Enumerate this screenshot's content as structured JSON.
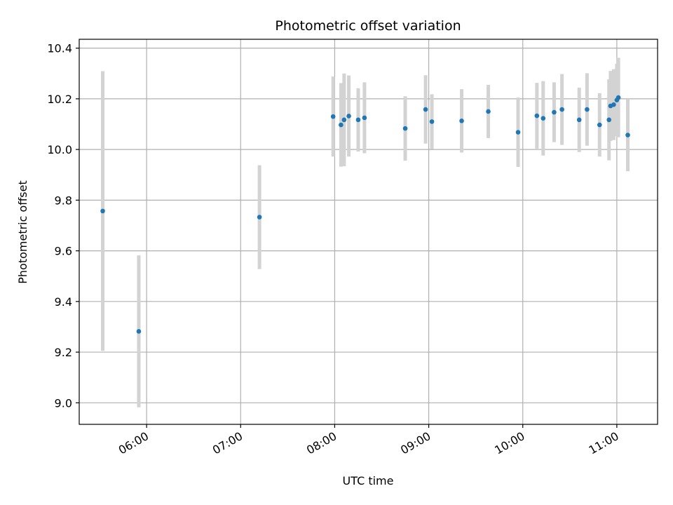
{
  "chart_data": {
    "type": "scatter",
    "title": "Photometric offset variation",
    "xlabel": "UTC time",
    "ylabel": "Photometric offset",
    "xlim": [
      "05:17",
      "11:26"
    ],
    "ylim": [
      8.915,
      10.435
    ],
    "x_ticks": [
      "06:00",
      "07:00",
      "08:00",
      "09:00",
      "10:00",
      "11:00"
    ],
    "y_ticks": [
      "9.0",
      "9.2",
      "9.4",
      "9.6",
      "9.8",
      "10.0",
      "10.2",
      "10.4"
    ],
    "grid": true,
    "colors": {
      "points": "#1f77b4",
      "errorbars": "#d3d3d3",
      "grid": "#b0b0b0"
    },
    "series": [
      {
        "points": [
          {
            "x": "05:32",
            "y": 9.757,
            "err": 0.552
          },
          {
            "x": "05:55",
            "y": 9.282,
            "err": 0.3
          },
          {
            "x": "07:12",
            "y": 9.733,
            "err": 0.205
          },
          {
            "x": "07:59",
            "y": 10.13,
            "err": 0.158
          },
          {
            "x": "08:04",
            "y": 10.097,
            "err": 0.165
          },
          {
            "x": "08:06",
            "y": 10.117,
            "err": 0.183
          },
          {
            "x": "08:09",
            "y": 10.132,
            "err": 0.16
          },
          {
            "x": "08:15",
            "y": 10.117,
            "err": 0.125
          },
          {
            "x": "08:19",
            "y": 10.125,
            "err": 0.14
          },
          {
            "x": "08:45",
            "y": 10.083,
            "err": 0.127
          },
          {
            "x": "08:58",
            "y": 10.158,
            "err": 0.135
          },
          {
            "x": "09:02",
            "y": 10.11,
            "err": 0.108
          },
          {
            "x": "09:21",
            "y": 10.113,
            "err": 0.125
          },
          {
            "x": "09:38",
            "y": 10.15,
            "err": 0.105
          },
          {
            "x": "09:57",
            "y": 10.068,
            "err": 0.137
          },
          {
            "x": "10:09",
            "y": 10.133,
            "err": 0.13
          },
          {
            "x": "10:13",
            "y": 10.123,
            "err": 0.147
          },
          {
            "x": "10:20",
            "y": 10.147,
            "err": 0.118
          },
          {
            "x": "10:25",
            "y": 10.158,
            "err": 0.14
          },
          {
            "x": "10:36",
            "y": 10.117,
            "err": 0.127
          },
          {
            "x": "10:41",
            "y": 10.158,
            "err": 0.143
          },
          {
            "x": "10:49",
            "y": 10.097,
            "err": 0.125
          },
          {
            "x": "10:55",
            "y": 10.117,
            "err": 0.16
          },
          {
            "x": "10:56",
            "y": 10.172,
            "err": 0.138
          },
          {
            "x": "10:58",
            "y": 10.177,
            "err": 0.14
          },
          {
            "x": "11:00",
            "y": 10.195,
            "err": 0.143
          },
          {
            "x": "11:01",
            "y": 10.205,
            "err": 0.157
          },
          {
            "x": "11:07",
            "y": 10.057,
            "err": 0.143
          }
        ]
      }
    ]
  }
}
